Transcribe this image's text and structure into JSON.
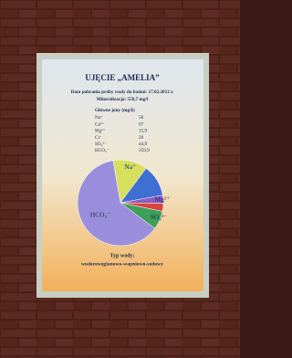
{
  "poster": {
    "title": "UJĘCIE „AMELIA”",
    "date_line": "Data pobrania próby wody do badań: 17.02.2012 r.",
    "mineralization": "Mineralizacja: 558,7 mg/l",
    "ions_header": "Główne jony (mg/l):",
    "ions": [
      {
        "name": "Na⁺",
        "value": "58"
      },
      {
        "name": "Ca²⁺",
        "value": "67"
      },
      {
        "name": "Mg²⁺",
        "value": "15,9"
      },
      {
        "name": "Cl⁻",
        "value": "20"
      },
      {
        "name": "SO₄²⁻",
        "value": "44,9"
      },
      {
        "name": "HCO₃⁻",
        "value": "359,9"
      }
    ],
    "pie": {
      "labels": [
        "Na⁺",
        null,
        "Mg²⁺",
        null,
        "SO₄²⁻",
        "HCO₃⁻"
      ],
      "values": [
        13,
        12,
        3,
        3,
        7,
        62
      ],
      "colors": [
        "#d6df5e",
        "#3f6fd2",
        "#8a5cc0",
        "#d8443e",
        "#3e9e5a",
        "#9a8edc"
      ]
    },
    "type_header": "Typ wody:",
    "type_value": "wodorowęglanowo-wapniowo-sodowy"
  }
}
